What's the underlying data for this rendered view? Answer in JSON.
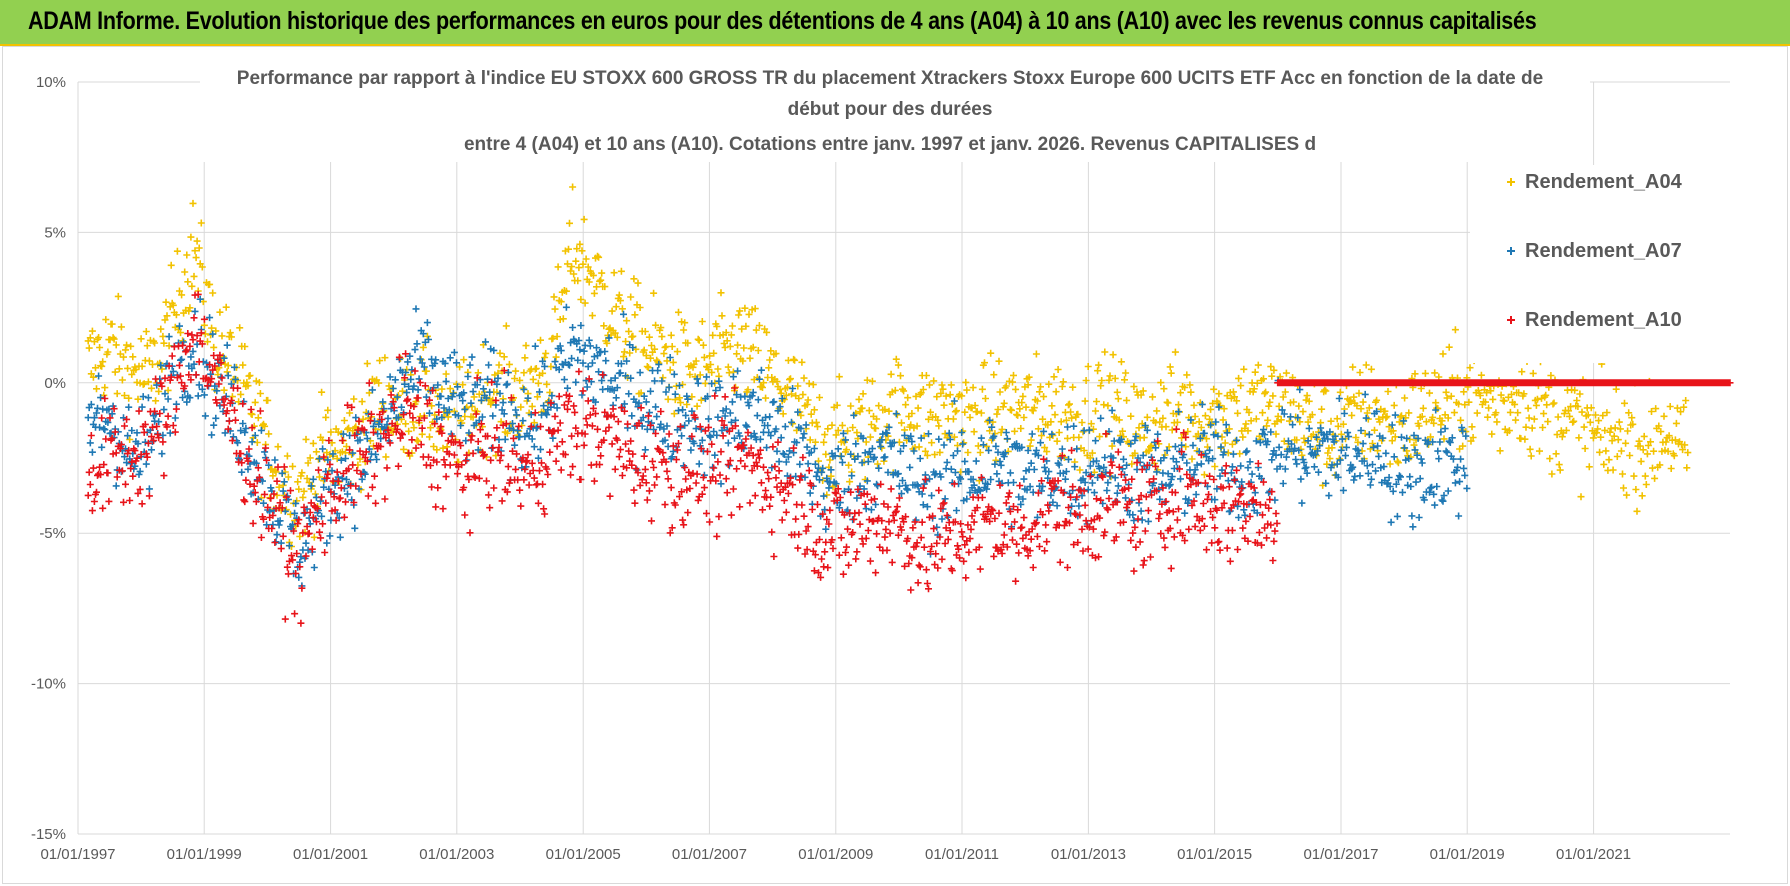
{
  "header": {
    "banner_text": "ADAM Informe. Evolution historique des performances en euros pour des détentions de 4 ans (A04) à 10 ans (A10) avec les revenus connus capitalisés",
    "banner_color": "#92d050",
    "banner_border_color": "#f2c200"
  },
  "chart_data": {
    "type": "scatter",
    "title_lines": [
      "Performance par rapport à l'indice EU STOXX 600 GROSS TR  du placement Xtrackers Stoxx Europe 600 UCITS ETF Acc en fonction de la date de",
      "début pour des durées",
      "entre 4 (A04) et 10 ans (A10).  Cotations entre janv. 1997 et janv. 2026. Revenus CAPITALISES d"
    ],
    "xlabel": "",
    "ylabel": "",
    "ylim": [
      -15,
      10
    ],
    "y_ticks": [
      10,
      5,
      0,
      -5,
      -10,
      -15
    ],
    "y_tick_labels": [
      "10%",
      "5%",
      "0%",
      "-5%",
      "-10%",
      "-15%"
    ],
    "xlim": [
      "1997-01-01",
      "2023-03-01"
    ],
    "x_ticks": [
      "1997-01-01",
      "1999-01-01",
      "2001-01-01",
      "2003-01-01",
      "2005-01-01",
      "2007-01-01",
      "2009-01-01",
      "2011-01-01",
      "2013-01-01",
      "2015-01-01",
      "2017-01-01",
      "2019-01-01",
      "2021-01-01"
    ],
    "x_tick_labels": [
      "01/01/1997",
      "01/01/1999",
      "01/01/2001",
      "01/01/2003",
      "01/01/2005",
      "01/01/2007",
      "01/01/2009",
      "01/01/2011",
      "01/01/2013",
      "01/01/2015",
      "01/01/2017",
      "01/01/2019",
      "01/01/2021"
    ],
    "grid": true,
    "marker": "+",
    "legend_position": "top-right",
    "series": [
      {
        "name": "Rendement_A04",
        "color": "#f2c200",
        "x": [
          "1997-03-01",
          "1997-07-01",
          "1997-11-01",
          "1998-03-01",
          "1998-07-01",
          "1998-11-01",
          "1999-03-01",
          "1999-07-01",
          "1999-11-01",
          "2000-03-01",
          "2000-07-01",
          "2000-11-01",
          "2001-03-01",
          "2001-07-01",
          "2001-11-01",
          "2002-03-01",
          "2002-07-01",
          "2002-11-01",
          "2003-03-01",
          "2003-07-01",
          "2003-11-01",
          "2004-03-01",
          "2004-07-01",
          "2004-11-01",
          "2005-03-01",
          "2005-07-01",
          "2005-11-01",
          "2006-03-01",
          "2006-07-01",
          "2006-11-01",
          "2007-03-01",
          "2007-07-01",
          "2007-11-01",
          "2008-03-01",
          "2008-07-01",
          "2008-11-01",
          "2009-03-01",
          "2009-07-01",
          "2009-11-01",
          "2010-03-01",
          "2010-07-01",
          "2010-11-01",
          "2011-03-01",
          "2011-07-01",
          "2011-11-01",
          "2012-03-01",
          "2012-07-01",
          "2012-11-01",
          "2013-03-01",
          "2013-07-01",
          "2013-11-01",
          "2014-03-01",
          "2014-07-01",
          "2014-11-01",
          "2015-03-01",
          "2015-07-01",
          "2015-11-01",
          "2016-03-01",
          "2016-07-01",
          "2016-11-01",
          "2017-03-01",
          "2017-07-01",
          "2017-11-01",
          "2018-03-01",
          "2018-07-01",
          "2018-11-01",
          "2019-03-01",
          "2019-07-01",
          "2019-11-01",
          "2020-03-01",
          "2020-07-01",
          "2020-11-01",
          "2021-03-01",
          "2021-07-01",
          "2021-11-01",
          "2022-03-01",
          "2022-07-01"
        ],
        "y": [
          0.5,
          1.2,
          0.4,
          0.2,
          2.0,
          4.5,
          1.5,
          0.3,
          -1.2,
          -3.0,
          -3.8,
          -2.5,
          -2.2,
          -1.5,
          -0.5,
          -1.0,
          -0.5,
          -1.5,
          -1.0,
          -0.2,
          -0.4,
          -0.3,
          0.8,
          4.5,
          3.5,
          2.2,
          1.5,
          1.0,
          0.5,
          0.3,
          0.8,
          1.2,
          0.5,
          -0.2,
          -1.0,
          -2.0,
          -2.0,
          -1.5,
          -1.0,
          -0.8,
          -1.2,
          -1.0,
          -1.3,
          -1.0,
          -0.8,
          -1.0,
          -0.9,
          -1.2,
          -0.8,
          -1.0,
          -1.5,
          -1.2,
          -0.8,
          -1.3,
          -1.0,
          -0.8,
          -0.7,
          -1.0,
          -1.4,
          -1.8,
          -1.2,
          -1.0,
          -1.5,
          -1.2,
          -0.8,
          -0.5,
          -0.5,
          -0.8,
          -0.3,
          -1.0,
          -1.2,
          -1.5,
          -2.0,
          -1.8,
          -2.2,
          -1.5,
          -2.5
        ],
        "spread": 1.6
      },
      {
        "name": "Rendement_A07",
        "color": "#1f78b4",
        "x": [
          "1997-03-01",
          "1997-07-01",
          "1997-11-01",
          "1998-03-01",
          "1998-07-01",
          "1998-11-01",
          "1999-03-01",
          "1999-07-01",
          "1999-11-01",
          "2000-03-01",
          "2000-07-01",
          "2000-11-01",
          "2001-03-01",
          "2001-07-01",
          "2001-11-01",
          "2002-03-01",
          "2002-07-01",
          "2002-11-01",
          "2003-03-01",
          "2003-07-01",
          "2003-11-01",
          "2004-03-01",
          "2004-07-01",
          "2004-11-01",
          "2005-03-01",
          "2005-07-01",
          "2005-11-01",
          "2006-03-01",
          "2006-07-01",
          "2006-11-01",
          "2007-03-01",
          "2007-07-01",
          "2007-11-01",
          "2008-03-01",
          "2008-07-01",
          "2008-11-01",
          "2009-03-01",
          "2009-07-01",
          "2009-11-01",
          "2010-03-01",
          "2010-07-01",
          "2010-11-01",
          "2011-03-01",
          "2011-07-01",
          "2011-11-01",
          "2012-03-01",
          "2012-07-01",
          "2012-11-01",
          "2013-03-01",
          "2013-07-01",
          "2013-11-01",
          "2014-03-01",
          "2014-07-01",
          "2014-11-01",
          "2015-03-01",
          "2015-07-01",
          "2015-11-01",
          "2016-03-01",
          "2016-07-01",
          "2016-11-01",
          "2017-03-01",
          "2017-07-01",
          "2017-11-01",
          "2018-03-01",
          "2018-07-01",
          "2018-11-01",
          "2019-01-01"
        ],
        "y": [
          -1.5,
          -1.0,
          -2.5,
          -2.0,
          0.5,
          1.5,
          0.0,
          -1.0,
          -2.5,
          -4.0,
          -5.5,
          -4.0,
          -3.0,
          -2.5,
          -1.5,
          0.0,
          0.5,
          -0.5,
          -1.0,
          -0.5,
          -1.0,
          -1.5,
          -0.5,
          1.0,
          0.5,
          0.0,
          -0.5,
          -0.8,
          -1.0,
          -1.2,
          -1.5,
          -1.0,
          -1.2,
          -1.8,
          -2.5,
          -3.5,
          -3.0,
          -2.5,
          -2.5,
          -3.0,
          -3.5,
          -3.0,
          -3.0,
          -2.5,
          -3.0,
          -3.2,
          -2.8,
          -3.0,
          -2.5,
          -2.8,
          -3.0,
          -3.2,
          -2.8,
          -2.5,
          -2.8,
          -3.0,
          -2.5,
          -2.0,
          -2.5,
          -2.2,
          -2.5,
          -2.0,
          -2.8,
          -3.0,
          -2.5,
          -2.8,
          -2.5
        ],
        "spread": 1.6
      },
      {
        "name": "Rendement_A10",
        "color": "#e8141a",
        "x": [
          "1997-03-01",
          "1997-07-01",
          "1997-11-01",
          "1998-03-01",
          "1998-07-01",
          "1998-11-01",
          "1999-03-01",
          "1999-07-01",
          "1999-11-01",
          "2000-03-01",
          "2000-07-01",
          "2000-11-01",
          "2001-03-01",
          "2001-07-01",
          "2001-11-01",
          "2002-03-01",
          "2002-07-01",
          "2002-11-01",
          "2003-03-01",
          "2003-07-01",
          "2003-11-01",
          "2004-03-01",
          "2004-07-01",
          "2004-11-01",
          "2005-03-01",
          "2005-07-01",
          "2005-11-01",
          "2006-03-01",
          "2006-07-01",
          "2006-11-01",
          "2007-03-01",
          "2007-07-01",
          "2007-11-01",
          "2008-03-01",
          "2008-07-01",
          "2008-11-01",
          "2009-03-01",
          "2009-07-01",
          "2009-11-01",
          "2010-03-01",
          "2010-07-01",
          "2010-11-01",
          "2011-03-01",
          "2011-07-01",
          "2011-11-01",
          "2012-03-01",
          "2012-07-01",
          "2012-11-01",
          "2013-03-01",
          "2013-07-01",
          "2013-11-01",
          "2014-03-01",
          "2014-07-01",
          "2014-11-01",
          "2015-03-01",
          "2015-07-01",
          "2015-11-01",
          "2016-01-01"
        ],
        "y": [
          -3.0,
          -2.5,
          -2.5,
          -2.0,
          -0.5,
          2.0,
          0.0,
          -1.5,
          -3.0,
          -4.5,
          -6.0,
          -4.0,
          -3.0,
          -2.5,
          -2.0,
          -1.0,
          -1.5,
          -2.5,
          -3.0,
          -2.0,
          -2.5,
          -3.0,
          -2.0,
          -1.5,
          -1.5,
          -2.0,
          -2.5,
          -2.5,
          -3.0,
          -2.8,
          -3.0,
          -2.5,
          -3.0,
          -3.5,
          -4.0,
          -5.0,
          -5.0,
          -4.5,
          -4.5,
          -5.0,
          -5.5,
          -5.0,
          -5.0,
          -4.5,
          -5.0,
          -4.5,
          -4.0,
          -4.5,
          -4.0,
          -4.0,
          -4.5,
          -4.0,
          -3.5,
          -4.0,
          -4.2,
          -4.0,
          -4.5,
          -4.0
        ],
        "spread": 1.7,
        "flat_segment": {
          "x_start": "2016-01-01",
          "x_end": "2023-03-01",
          "y": 0
        }
      }
    ]
  }
}
